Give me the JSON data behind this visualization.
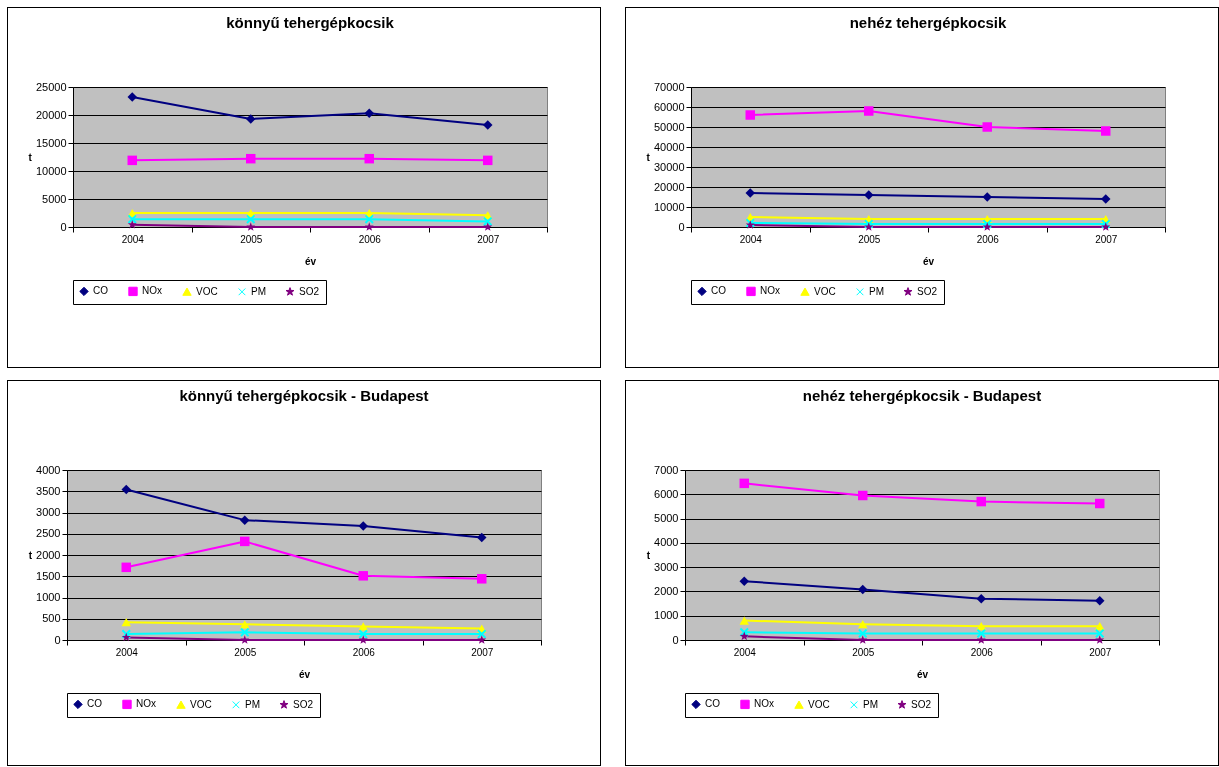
{
  "chart_data": [
    {
      "type": "line",
      "title": "könnyű tehergépkocsik",
      "xlabel": "év",
      "ylabel": "t",
      "categories": [
        "2004",
        "2005",
        "2006",
        "2007"
      ],
      "ylim": [
        0,
        25000
      ],
      "yticks": [
        0,
        5000,
        10000,
        15000,
        20000,
        25000
      ],
      "grid": "y",
      "legend": "bottom",
      "series": [
        {
          "name": "CO",
          "color": "#000080",
          "marker": "diamond",
          "values": [
            23200,
            19300,
            20300,
            18200
          ]
        },
        {
          "name": "NOx",
          "color": "#ff00ff",
          "marker": "square",
          "values": [
            11900,
            12200,
            12200,
            11900
          ]
        },
        {
          "name": "VOC",
          "color": "#ffff00",
          "marker": "triangle",
          "values": [
            2500,
            2500,
            2500,
            2100
          ]
        },
        {
          "name": "PM",
          "color": "#00ffff",
          "marker": "cross",
          "values": [
            1400,
            1400,
            1400,
            1000
          ]
        },
        {
          "name": "SO2",
          "color": "#800080",
          "marker": "star",
          "values": [
            400,
            0,
            0,
            0
          ]
        }
      ]
    },
    {
      "type": "line",
      "title": "nehéz tehergépkocsik",
      "xlabel": "év",
      "ylabel": "t",
      "categories": [
        "2004",
        "2005",
        "2006",
        "2007"
      ],
      "ylim": [
        0,
        70000
      ],
      "yticks": [
        0,
        10000,
        20000,
        30000,
        40000,
        50000,
        60000,
        70000
      ],
      "grid": "y",
      "legend": "bottom",
      "series": [
        {
          "name": "CO",
          "color": "#000080",
          "marker": "diamond",
          "values": [
            17000,
            16000,
            15000,
            14000
          ]
        },
        {
          "name": "NOx",
          "color": "#ff00ff",
          "marker": "square",
          "values": [
            56000,
            58000,
            50000,
            48000
          ]
        },
        {
          "name": "VOC",
          "color": "#ffff00",
          "marker": "triangle",
          "values": [
            5000,
            4000,
            4000,
            4000
          ]
        },
        {
          "name": "PM",
          "color": "#00ffff",
          "marker": "cross",
          "values": [
            2000,
            1500,
            1500,
            1500
          ]
        },
        {
          "name": "SO2",
          "color": "#800080",
          "marker": "star",
          "values": [
            1000,
            0,
            0,
            0
          ]
        }
      ]
    },
    {
      "type": "line",
      "title": "könnyű tehergépkocsik - Budapest",
      "xlabel": "év",
      "ylabel": "t",
      "categories": [
        "2004",
        "2005",
        "2006",
        "2007"
      ],
      "ylim": [
        0,
        4000
      ],
      "yticks": [
        0,
        500,
        1000,
        1500,
        2000,
        2500,
        3000,
        3500,
        4000
      ],
      "grid": "y",
      "legend": "bottom",
      "series": [
        {
          "name": "CO",
          "color": "#000080",
          "marker": "diamond",
          "values": [
            3540,
            2820,
            2680,
            2410
          ]
        },
        {
          "name": "NOx",
          "color": "#ff00ff",
          "marker": "square",
          "values": [
            1710,
            2320,
            1510,
            1440
          ]
        },
        {
          "name": "VOC",
          "color": "#ffff00",
          "marker": "triangle",
          "values": [
            420,
            370,
            320,
            270
          ]
        },
        {
          "name": "PM",
          "color": "#00ffff",
          "marker": "cross",
          "values": [
            140,
            180,
            140,
            140
          ]
        },
        {
          "name": "SO2",
          "color": "#800080",
          "marker": "star",
          "values": [
            60,
            0,
            0,
            0
          ]
        }
      ]
    },
    {
      "type": "line",
      "title": "nehéz tehergépkocsik - Budapest",
      "xlabel": "év",
      "ylabel": "t",
      "categories": [
        "2004",
        "2005",
        "2006",
        "2007"
      ],
      "ylim": [
        0,
        7000
      ],
      "yticks": [
        0,
        1000,
        2000,
        3000,
        4000,
        5000,
        6000,
        7000
      ],
      "grid": "y",
      "legend": "bottom",
      "series": [
        {
          "name": "CO",
          "color": "#000080",
          "marker": "diamond",
          "values": [
            2420,
            2080,
            1700,
            1620
          ]
        },
        {
          "name": "NOx",
          "color": "#ff00ff",
          "marker": "square",
          "values": [
            6450,
            5950,
            5700,
            5620
          ]
        },
        {
          "name": "VOC",
          "color": "#ffff00",
          "marker": "triangle",
          "values": [
            800,
            650,
            570,
            570
          ]
        },
        {
          "name": "PM",
          "color": "#00ffff",
          "marker": "cross",
          "values": [
            320,
            270,
            270,
            270
          ]
        },
        {
          "name": "SO2",
          "color": "#800080",
          "marker": "star",
          "values": [
            150,
            0,
            0,
            0
          ]
        }
      ]
    }
  ]
}
